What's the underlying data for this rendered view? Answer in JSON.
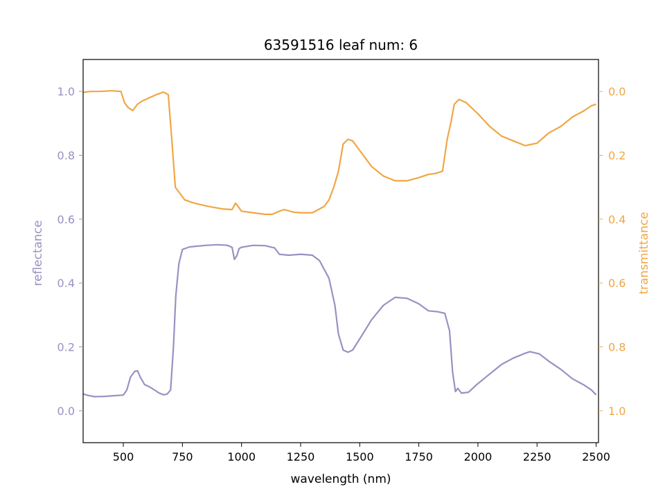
{
  "chart_data": {
    "type": "line",
    "title": "63591516 leaf num: 6",
    "xlabel": "wavelength (nm)",
    "ylabel_left": "reflectance",
    "ylabel_right": "transmittance",
    "xlim": [
      330,
      2510
    ],
    "ylim_left": [
      -0.1,
      1.1
    ],
    "ylim_right_inverted": [
      1.1,
      -0.1
    ],
    "xticks": [
      500,
      750,
      1000,
      1250,
      1500,
      1750,
      2000,
      2250,
      2500
    ],
    "yticks_left": [
      0.0,
      0.2,
      0.4,
      0.6,
      0.8,
      1.0
    ],
    "yticks_right": [
      0.0,
      0.2,
      0.4,
      0.6,
      0.8,
      1.0
    ],
    "colors": {
      "reflectance": "#9990c2",
      "transmittance": "#f0a644"
    },
    "grid": false,
    "legend": "none",
    "series": [
      {
        "axis": "left",
        "color": "#9990c2",
        "points": [
          [
            330,
            0.053
          ],
          [
            350,
            0.048
          ],
          [
            380,
            0.044
          ],
          [
            420,
            0.045
          ],
          [
            460,
            0.047
          ],
          [
            500,
            0.049
          ],
          [
            515,
            0.065
          ],
          [
            530,
            0.105
          ],
          [
            548,
            0.123
          ],
          [
            560,
            0.125
          ],
          [
            572,
            0.105
          ],
          [
            590,
            0.082
          ],
          [
            610,
            0.075
          ],
          [
            630,
            0.066
          ],
          [
            650,
            0.056
          ],
          [
            670,
            0.05
          ],
          [
            685,
            0.052
          ],
          [
            700,
            0.065
          ],
          [
            712,
            0.2
          ],
          [
            722,
            0.36
          ],
          [
            735,
            0.46
          ],
          [
            750,
            0.505
          ],
          [
            780,
            0.513
          ],
          [
            850,
            0.518
          ],
          [
            900,
            0.52
          ],
          [
            940,
            0.518
          ],
          [
            960,
            0.512
          ],
          [
            970,
            0.474
          ],
          [
            980,
            0.485
          ],
          [
            990,
            0.508
          ],
          [
            1000,
            0.512
          ],
          [
            1050,
            0.518
          ],
          [
            1100,
            0.517
          ],
          [
            1140,
            0.51
          ],
          [
            1160,
            0.49
          ],
          [
            1200,
            0.487
          ],
          [
            1250,
            0.49
          ],
          [
            1300,
            0.487
          ],
          [
            1330,
            0.47
          ],
          [
            1370,
            0.415
          ],
          [
            1395,
            0.33
          ],
          [
            1410,
            0.24
          ],
          [
            1430,
            0.19
          ],
          [
            1450,
            0.183
          ],
          [
            1470,
            0.19
          ],
          [
            1500,
            0.225
          ],
          [
            1550,
            0.285
          ],
          [
            1600,
            0.33
          ],
          [
            1650,
            0.355
          ],
          [
            1700,
            0.352
          ],
          [
            1750,
            0.335
          ],
          [
            1790,
            0.313
          ],
          [
            1830,
            0.31
          ],
          [
            1860,
            0.305
          ],
          [
            1880,
            0.25
          ],
          [
            1893,
            0.12
          ],
          [
            1900,
            0.085
          ],
          [
            1905,
            0.06
          ],
          [
            1915,
            0.07
          ],
          [
            1930,
            0.055
          ],
          [
            1960,
            0.058
          ],
          [
            2000,
            0.085
          ],
          [
            2050,
            0.115
          ],
          [
            2100,
            0.145
          ],
          [
            2150,
            0.165
          ],
          [
            2200,
            0.18
          ],
          [
            2220,
            0.185
          ],
          [
            2260,
            0.178
          ],
          [
            2300,
            0.155
          ],
          [
            2350,
            0.13
          ],
          [
            2400,
            0.1
          ],
          [
            2450,
            0.08
          ],
          [
            2480,
            0.065
          ],
          [
            2500,
            0.05
          ]
        ]
      },
      {
        "axis": "right",
        "color": "#f0a644",
        "points": [
          [
            330,
            0.003
          ],
          [
            360,
            0.0
          ],
          [
            400,
            0.0
          ],
          [
            450,
            -0.002
          ],
          [
            490,
            0.0
          ],
          [
            505,
            0.035
          ],
          [
            520,
            0.05
          ],
          [
            540,
            0.06
          ],
          [
            560,
            0.04
          ],
          [
            580,
            0.03
          ],
          [
            610,
            0.02
          ],
          [
            640,
            0.01
          ],
          [
            670,
            0.002
          ],
          [
            690,
            0.01
          ],
          [
            705,
            0.15
          ],
          [
            720,
            0.3
          ],
          [
            740,
            0.32
          ],
          [
            760,
            0.34
          ],
          [
            800,
            0.35
          ],
          [
            860,
            0.36
          ],
          [
            920,
            0.368
          ],
          [
            960,
            0.37
          ],
          [
            975,
            0.35
          ],
          [
            1000,
            0.375
          ],
          [
            1050,
            0.38
          ],
          [
            1100,
            0.385
          ],
          [
            1130,
            0.385
          ],
          [
            1150,
            0.378
          ],
          [
            1180,
            0.37
          ],
          [
            1220,
            0.378
          ],
          [
            1250,
            0.38
          ],
          [
            1300,
            0.38
          ],
          [
            1350,
            0.36
          ],
          [
            1370,
            0.34
          ],
          [
            1390,
            0.3
          ],
          [
            1410,
            0.25
          ],
          [
            1430,
            0.165
          ],
          [
            1450,
            0.15
          ],
          [
            1470,
            0.155
          ],
          [
            1500,
            0.185
          ],
          [
            1550,
            0.235
          ],
          [
            1600,
            0.265
          ],
          [
            1650,
            0.28
          ],
          [
            1700,
            0.28
          ],
          [
            1750,
            0.27
          ],
          [
            1790,
            0.26
          ],
          [
            1820,
            0.257
          ],
          [
            1850,
            0.25
          ],
          [
            1870,
            0.15
          ],
          [
            1885,
            0.1
          ],
          [
            1900,
            0.04
          ],
          [
            1920,
            0.025
          ],
          [
            1950,
            0.035
          ],
          [
            2000,
            0.07
          ],
          [
            2050,
            0.11
          ],
          [
            2100,
            0.14
          ],
          [
            2150,
            0.155
          ],
          [
            2200,
            0.17
          ],
          [
            2250,
            0.162
          ],
          [
            2300,
            0.13
          ],
          [
            2350,
            0.11
          ],
          [
            2400,
            0.08
          ],
          [
            2450,
            0.06
          ],
          [
            2480,
            0.045
          ],
          [
            2500,
            0.04
          ]
        ]
      }
    ]
  }
}
